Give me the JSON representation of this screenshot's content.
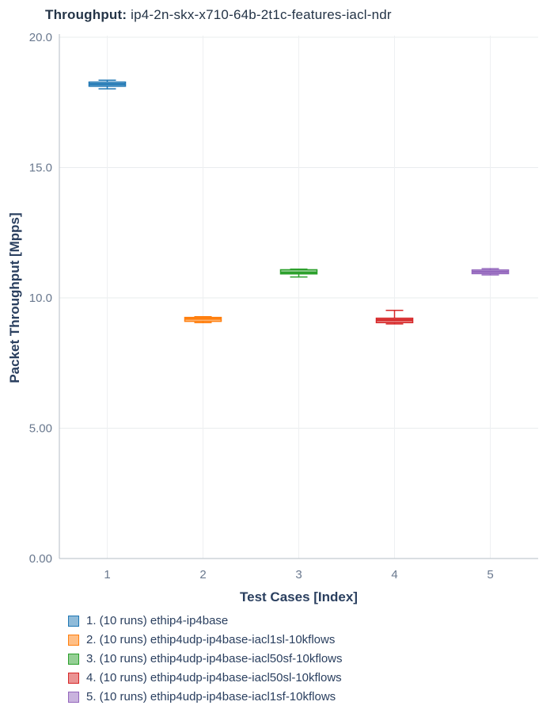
{
  "title": {
    "prefix": "Throughput:",
    "rest": " ip4-2n-skx-x710-64b-2t1c-features-iacl-ndr"
  },
  "chart_data": {
    "type": "box",
    "title": "Throughput: ip4-2n-skx-x710-64b-2t1c-features-iacl-ndr",
    "xlabel": "Test Cases [Index]",
    "ylabel": "Packet Throughput [Mpps]",
    "ylim": [
      0,
      20
    ],
    "grid": true,
    "legend_position": "bottom",
    "yticks": [
      {
        "v": 0,
        "label": "0.00"
      },
      {
        "v": 5,
        "label": "5.00"
      },
      {
        "v": 10,
        "label": "10.0"
      },
      {
        "v": 15,
        "label": "15.0"
      },
      {
        "v": 20,
        "label": "20.0"
      }
    ],
    "xticks": [
      "1",
      "2",
      "3",
      "4",
      "5"
    ],
    "series": [
      {
        "x": 1,
        "name": "1. (10 runs) ethip4-ip4base",
        "color": "#1f77b4",
        "low": 18.02,
        "q1": 18.12,
        "median": 18.2,
        "q3": 18.28,
        "high": 18.35
      },
      {
        "x": 2,
        "name": "2. (10 runs) ethip4udp-ip4base-iacl1sl-10kflows",
        "color": "#ff7f0e",
        "low": 9.05,
        "q1": 9.1,
        "median": 9.2,
        "q3": 9.25,
        "high": 9.28
      },
      {
        "x": 3,
        "name": "3. (10 runs) ethip4udp-ip4base-iacl50sf-10kflows",
        "color": "#2ca02c",
        "low": 10.8,
        "q1": 10.92,
        "median": 10.97,
        "q3": 11.08,
        "high": 11.1
      },
      {
        "x": 4,
        "name": "4. (10 runs) ethip4udp-ip4base-iacl50sl-10kflows",
        "color": "#d62728",
        "low": 9.0,
        "q1": 9.05,
        "median": 9.15,
        "q3": 9.22,
        "high": 9.52
      },
      {
        "x": 5,
        "name": "5. (10 runs) ethip4udp-ip4base-iacl1sf-10kflows",
        "color": "#9467bd",
        "low": 10.88,
        "q1": 10.93,
        "median": 11.0,
        "q3": 11.07,
        "high": 11.12
      }
    ]
  }
}
